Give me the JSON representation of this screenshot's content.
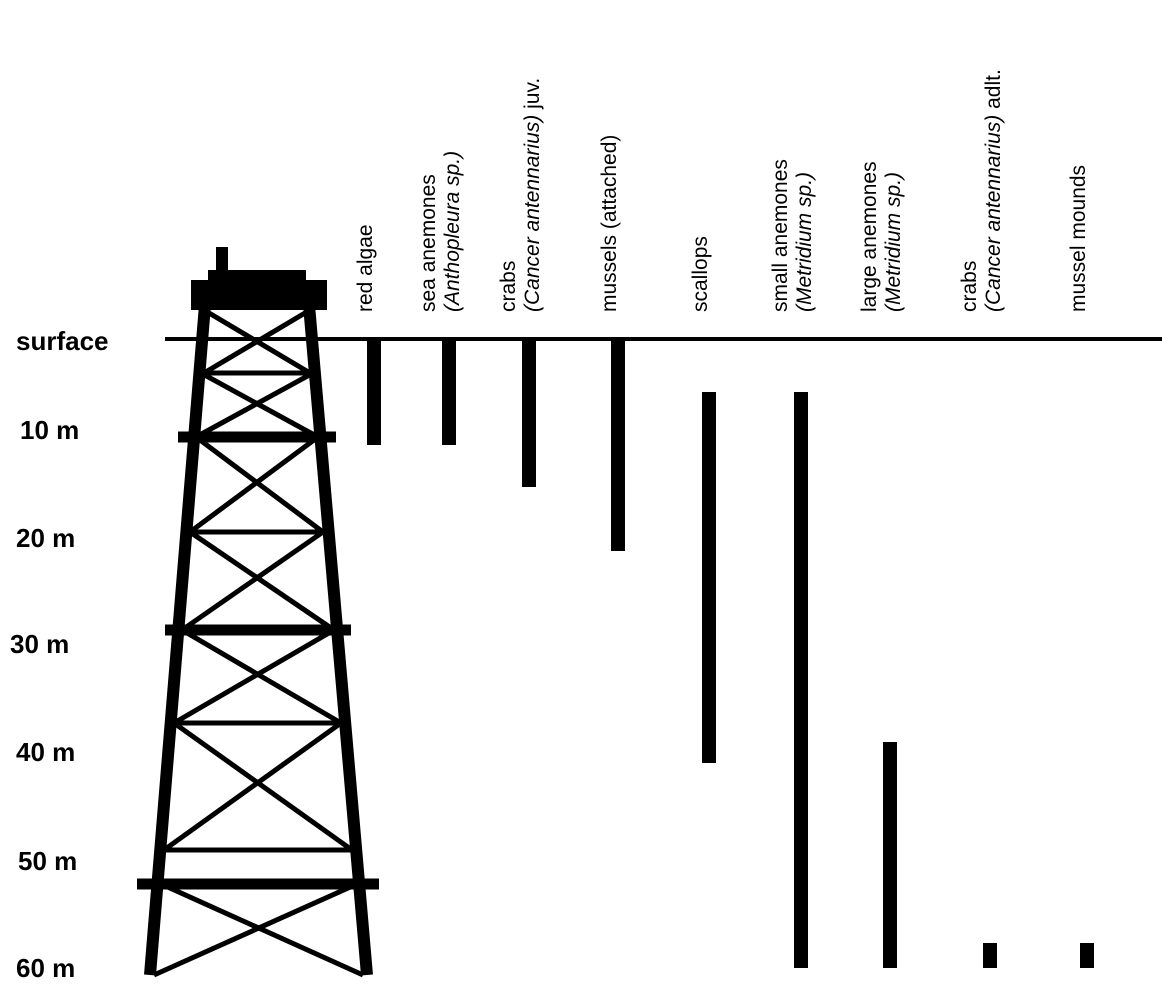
{
  "depth_axis": {
    "labels": [
      "surface",
      "10 m",
      "20 m",
      "30 m",
      "40 m",
      "50 m",
      "60 m"
    ]
  },
  "organisms": [
    {
      "name": "red algae",
      "lines": [
        [
          {
            "t": "red algae",
            "i": false
          }
        ]
      ],
      "range_m": [
        0,
        10
      ]
    },
    {
      "name": "sea anemones (Anthopleura sp.)",
      "lines": [
        [
          {
            "t": "sea anemones",
            "i": false
          }
        ],
        [
          {
            "t": "(Anthopleura sp.)",
            "i": true
          }
        ]
      ],
      "range_m": [
        0,
        10
      ]
    },
    {
      "name": "crabs (Cancer antennarius) juv.",
      "lines": [
        [
          {
            "t": "crabs",
            "i": false
          }
        ],
        [
          {
            "t": "(Cancer antennarius)",
            "i": true
          },
          {
            "t": " juv.",
            "i": false
          }
        ]
      ],
      "range_m": [
        0,
        14
      ]
    },
    {
      "name": "mussels (attached)",
      "lines": [
        [
          {
            "t": "mussels (attached)",
            "i": false
          }
        ]
      ],
      "range_m": [
        0,
        20
      ]
    },
    {
      "name": "scallops",
      "lines": [
        [
          {
            "t": "scallops",
            "i": false
          }
        ]
      ],
      "range_m": [
        5,
        40
      ]
    },
    {
      "name": "small  anemones (Metridium sp.)",
      "lines": [
        [
          {
            "t": "small  anemones",
            "i": false
          }
        ],
        [
          {
            "t": "(Metridium sp.)",
            "i": true
          }
        ]
      ],
      "range_m": [
        5,
        60
      ]
    },
    {
      "name": "large anemones (Metridium sp.)",
      "lines": [
        [
          {
            "t": "large anemones",
            "i": false
          }
        ],
        [
          {
            "t": "(Metridium sp.)",
            "i": true
          }
        ]
      ],
      "range_m": [
        38,
        60
      ]
    },
    {
      "name": "crabs (Cancer antennarius) adlt.",
      "lines": [
        [
          {
            "t": "crabs",
            "i": false
          }
        ],
        [
          {
            "t": "(Cancer antennarius)",
            "i": true
          },
          {
            "t": " adlt.",
            "i": false
          }
        ]
      ],
      "range_m": [
        57,
        60
      ]
    },
    {
      "name": "mussel mounds",
      "lines": [
        [
          {
            "t": "mussel mounds",
            "i": false
          }
        ]
      ],
      "range_m": [
        57,
        60
      ]
    }
  ],
  "colors": {
    "ink": "#000000",
    "background": "#ffffff"
  },
  "icons": {
    "platform": "oil-platform-icon"
  }
}
